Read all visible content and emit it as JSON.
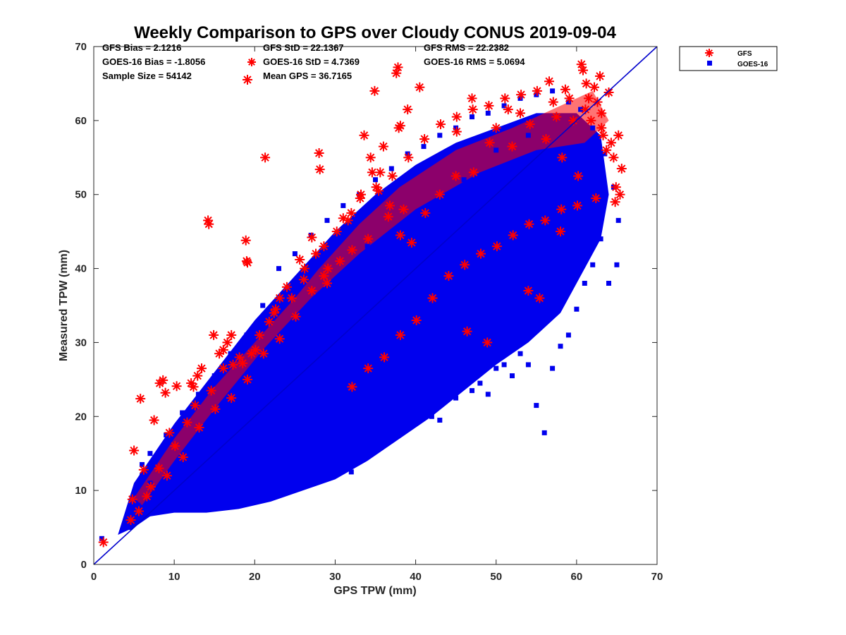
{
  "chart_data": {
    "type": "scatter",
    "title": "Weekly Comparison to GPS over Cloudy CONUS 2019-09-04",
    "xlabel": "GPS TPW (mm)",
    "ylabel": "Measured TPW (mm)",
    "xlim": [
      0,
      70
    ],
    "ylim": [
      0,
      70
    ],
    "xticks": [
      "0",
      "10",
      "20",
      "30",
      "40",
      "50",
      "60",
      "70"
    ],
    "yticks": [
      "0",
      "10",
      "20",
      "30",
      "40",
      "50",
      "60",
      "70"
    ],
    "grid": false,
    "legend_position": "outside-top-right",
    "reference_line": {
      "x": [
        0,
        70
      ],
      "y": [
        0,
        70
      ],
      "color": "#0000cc"
    },
    "stats": [
      {
        "text": "GFS Bias = 2.1216"
      },
      {
        "text": "GFS StD = 22.1367"
      },
      {
        "text": "GFS RMS = 22.2382"
      },
      {
        "text": "GOES-16 Bias = -1.8056"
      },
      {
        "text": "GOES-16 StD = 4.7369"
      },
      {
        "text": "GOES-16 RMS = 5.0694"
      },
      {
        "text": "Sample Size = 54142"
      },
      {
        "text": "Mean GPS = 36.7165"
      }
    ],
    "series": [
      {
        "name": "GFS",
        "marker": "asterisk",
        "color": "#ff0000",
        "points": [
          [
            1.2,
            3.0
          ],
          [
            4.6,
            6.0
          ],
          [
            4.8,
            8.8
          ],
          [
            5.0,
            15.4
          ],
          [
            5.8,
            22.4
          ],
          [
            6.2,
            12.8
          ],
          [
            7.5,
            19.5
          ],
          [
            8.2,
            24.5
          ],
          [
            8.6,
            24.9
          ],
          [
            8.9,
            23.2
          ],
          [
            9.4,
            17.8
          ],
          [
            10.3,
            24.1
          ],
          [
            11.6,
            19.2
          ],
          [
            12.1,
            24.5
          ],
          [
            12.4,
            24.0
          ],
          [
            12.9,
            25.5
          ],
          [
            13.4,
            26.5
          ],
          [
            14.2,
            46.5
          ],
          [
            14.3,
            46.0
          ],
          [
            14.9,
            31.0
          ],
          [
            15.6,
            28.5
          ],
          [
            16.1,
            29.0
          ],
          [
            16.6,
            30.0
          ],
          [
            17.1,
            31.0
          ],
          [
            17.3,
            27.0
          ],
          [
            18.1,
            28.0
          ],
          [
            18.5,
            27.2
          ],
          [
            18.9,
            43.8
          ],
          [
            19.0,
            41.0
          ],
          [
            19.1,
            40.8
          ],
          [
            19.6,
            28.5
          ],
          [
            20.1,
            29.0
          ],
          [
            21.3,
            55.0
          ],
          [
            21.8,
            32.8
          ],
          [
            22.4,
            34.0
          ],
          [
            23.1,
            36.0
          ],
          [
            24.0,
            37.5
          ],
          [
            24.6,
            36.0
          ],
          [
            25.6,
            41.2
          ],
          [
            26.2,
            40.0
          ],
          [
            27.1,
            44.2
          ],
          [
            27.6,
            42.0
          ],
          [
            28.0,
            55.6
          ],
          [
            28.1,
            53.4
          ],
          [
            28.6,
            39.0
          ],
          [
            29.1,
            40.0
          ],
          [
            30.2,
            45.0
          ],
          [
            31.0,
            46.8
          ],
          [
            32.0,
            47.5
          ],
          [
            33.2,
            50.0
          ],
          [
            33.6,
            58.0
          ],
          [
            34.4,
            55.0
          ],
          [
            34.6,
            53.0
          ],
          [
            34.9,
            64.0
          ],
          [
            35.4,
            50.5
          ],
          [
            35.6,
            53.0
          ],
          [
            36.0,
            56.5
          ],
          [
            36.8,
            48.5
          ],
          [
            37.6,
            66.4
          ],
          [
            37.8,
            67.2
          ],
          [
            37.9,
            59.0
          ],
          [
            38.1,
            59.3
          ],
          [
            38.5,
            48.0
          ],
          [
            39.0,
            61.5
          ],
          [
            40.5,
            64.5
          ],
          [
            45.1,
            58.5
          ],
          [
            46.4,
            31.5
          ],
          [
            47.0,
            63.0
          ],
          [
            48.9,
            30.0
          ],
          [
            50.0,
            59.0
          ],
          [
            51.5,
            61.5
          ],
          [
            53.0,
            61.0
          ],
          [
            54.0,
            37.0
          ],
          [
            55.4,
            36.0
          ],
          [
            56.6,
            65.3
          ],
          [
            57.5,
            60.5
          ],
          [
            58.0,
            45.0
          ],
          [
            58.6,
            64.2
          ],
          [
            59.6,
            60.0
          ],
          [
            60.6,
            67.6
          ],
          [
            60.8,
            66.8
          ],
          [
            61.2,
            65.0
          ],
          [
            61.5,
            63.0
          ],
          [
            61.8,
            60.0
          ],
          [
            62.2,
            64.5
          ],
          [
            62.6,
            62.5
          ],
          [
            62.9,
            66.0
          ],
          [
            63.1,
            59.0
          ],
          [
            63.3,
            58.0
          ],
          [
            63.7,
            56.0
          ],
          [
            64.0,
            63.8
          ],
          [
            64.3,
            57.0
          ],
          [
            64.6,
            55.0
          ],
          [
            64.9,
            51.0
          ],
          [
            65.2,
            58.0
          ],
          [
            65.4,
            50.0
          ],
          [
            65.6,
            53.5
          ],
          [
            64.8,
            49.0
          ],
          [
            62.4,
            49.5
          ],
          [
            60.2,
            52.5
          ],
          [
            58.2,
            55.0
          ],
          [
            56.2,
            57.5
          ],
          [
            54.2,
            59.5
          ],
          [
            52.0,
            56.5
          ],
          [
            49.2,
            57.0
          ],
          [
            47.2,
            53.0
          ],
          [
            45.0,
            52.5
          ],
          [
            43.0,
            50.0
          ],
          [
            41.2,
            47.5
          ],
          [
            39.5,
            43.5
          ],
          [
            38.1,
            44.5
          ],
          [
            36.6,
            47.0
          ],
          [
            34.1,
            44.0
          ],
          [
            32.1,
            42.5
          ],
          [
            30.6,
            41.0
          ],
          [
            29.0,
            38.0
          ],
          [
            27.1,
            37.0
          ],
          [
            25.1,
            33.5
          ],
          [
            23.1,
            30.5
          ],
          [
            21.1,
            28.5
          ],
          [
            19.1,
            25.0
          ],
          [
            17.1,
            22.5
          ],
          [
            15.1,
            21.0
          ],
          [
            13.1,
            18.5
          ],
          [
            11.1,
            14.5
          ],
          [
            9.1,
            12.0
          ],
          [
            7.1,
            10.5
          ],
          [
            6.6,
            9.2
          ],
          [
            5.6,
            7.2
          ],
          [
            8.1,
            13.0
          ],
          [
            10.1,
            16.0
          ],
          [
            12.6,
            21.5
          ],
          [
            14.6,
            23.5
          ],
          [
            16.1,
            26.5
          ],
          [
            20.6,
            31.0
          ],
          [
            22.6,
            34.5
          ],
          [
            26.1,
            38.5
          ],
          [
            28.6,
            43.0
          ],
          [
            31.6,
            46.5
          ],
          [
            33.1,
            49.5
          ],
          [
            35.1,
            51.0
          ],
          [
            37.1,
            52.5
          ],
          [
            39.1,
            55.0
          ],
          [
            41.1,
            57.5
          ],
          [
            43.1,
            59.5
          ],
          [
            45.1,
            60.5
          ],
          [
            47.1,
            61.5
          ],
          [
            49.1,
            62.0
          ],
          [
            51.1,
            63.0
          ],
          [
            53.1,
            63.5
          ],
          [
            55.1,
            64.0
          ],
          [
            57.1,
            62.5
          ],
          [
            59.1,
            63.0
          ],
          [
            61.1,
            61.5
          ],
          [
            63.1,
            61.0
          ],
          [
            42.1,
            36.0
          ],
          [
            44.1,
            39.0
          ],
          [
            46.1,
            40.5
          ],
          [
            48.1,
            42.0
          ],
          [
            50.1,
            43.0
          ],
          [
            52.1,
            44.5
          ],
          [
            54.1,
            46.0
          ],
          [
            56.1,
            46.5
          ],
          [
            58.1,
            48.0
          ],
          [
            60.1,
            48.5
          ],
          [
            40.1,
            33.0
          ],
          [
            38.1,
            31.0
          ],
          [
            36.1,
            28.0
          ],
          [
            34.1,
            26.5
          ],
          [
            32.1,
            24.0
          ]
        ]
      },
      {
        "name": "GOES-16",
        "marker": "square",
        "color": "#0000ee",
        "points": [
          [
            1.0,
            3.5
          ],
          [
            4.5,
            5.0
          ],
          [
            5.0,
            6.5
          ],
          [
            5.5,
            8.0
          ],
          [
            6.0,
            12.0
          ],
          [
            7.0,
            11.0
          ],
          [
            8.0,
            10.0
          ],
          [
            9.0,
            9.0
          ],
          [
            10.0,
            8.5
          ],
          [
            11.0,
            8.0
          ],
          [
            12.0,
            8.0
          ],
          [
            13.0,
            8.5
          ],
          [
            14.0,
            8.0
          ],
          [
            15.0,
            9.0
          ],
          [
            16.0,
            9.5
          ],
          [
            17.0,
            10.0
          ],
          [
            18.0,
            10.0
          ],
          [
            19.0,
            11.0
          ],
          [
            20.0,
            12.0
          ],
          [
            21.0,
            12.5
          ],
          [
            22.0,
            13.5
          ],
          [
            23.0,
            14.5
          ],
          [
            24.0,
            15.0
          ],
          [
            25.0,
            16.0
          ],
          [
            26.0,
            17.5
          ],
          [
            27.0,
            17.0
          ],
          [
            28.0,
            18.0
          ],
          [
            29.0,
            19.0
          ],
          [
            30.0,
            19.5
          ],
          [
            31.0,
            14.0
          ],
          [
            32.0,
            12.5
          ],
          [
            33.0,
            16.0
          ],
          [
            34.0,
            17.5
          ],
          [
            35.0,
            18.0
          ],
          [
            36.0,
            19.0
          ],
          [
            37.0,
            20.0
          ],
          [
            38.0,
            21.0
          ],
          [
            39.0,
            20.5
          ],
          [
            40.0,
            22.0
          ],
          [
            41.0,
            22.5
          ],
          [
            42.0,
            20.0
          ],
          [
            43.0,
            19.5
          ],
          [
            44.0,
            23.0
          ],
          [
            45.0,
            22.5
          ],
          [
            46.0,
            25.0
          ],
          [
            47.0,
            23.5
          ],
          [
            48.0,
            24.5
          ],
          [
            49.0,
            23.0
          ],
          [
            50.0,
            26.5
          ],
          [
            51.0,
            27.0
          ],
          [
            52.0,
            25.5
          ],
          [
            53.0,
            28.5
          ],
          [
            54.0,
            27.0
          ],
          [
            55.0,
            21.5
          ],
          [
            56.0,
            17.8
          ],
          [
            57.0,
            26.5
          ],
          [
            58.0,
            29.5
          ],
          [
            59.0,
            31.0
          ],
          [
            60.0,
            34.5
          ],
          [
            61.0,
            38.0
          ],
          [
            62.0,
            40.5
          ],
          [
            63.0,
            44.0
          ],
          [
            64.0,
            38.0
          ],
          [
            65.0,
            40.5
          ],
          [
            65.2,
            46.5
          ],
          [
            64.6,
            51.0
          ],
          [
            63.5,
            55.5
          ],
          [
            62.0,
            59.0
          ],
          [
            60.5,
            61.5
          ],
          [
            59.0,
            62.5
          ],
          [
            57.0,
            64.0
          ],
          [
            55.0,
            63.5
          ],
          [
            53.0,
            63.0
          ],
          [
            51.0,
            62.0
          ],
          [
            49.0,
            61.0
          ],
          [
            47.0,
            60.5
          ],
          [
            45.0,
            59.0
          ],
          [
            43.0,
            58.0
          ],
          [
            41.0,
            56.5
          ],
          [
            39.0,
            55.5
          ],
          [
            37.0,
            53.5
          ],
          [
            35.0,
            52.0
          ],
          [
            33.0,
            50.0
          ],
          [
            31.0,
            48.5
          ],
          [
            29.0,
            46.5
          ],
          [
            27.0,
            44.5
          ],
          [
            25.0,
            42.0
          ],
          [
            23.0,
            40.0
          ],
          [
            21.0,
            35.0
          ],
          [
            19.0,
            31.0
          ],
          [
            17.0,
            28.5
          ],
          [
            15.0,
            25.5
          ],
          [
            13.0,
            23.0
          ],
          [
            11.0,
            20.5
          ],
          [
            9.0,
            17.5
          ],
          [
            7.0,
            15.0
          ],
          [
            6.0,
            13.5
          ],
          [
            30.0,
            33.0
          ],
          [
            35.0,
            38.0
          ],
          [
            40.0,
            42.0
          ],
          [
            45.0,
            46.0
          ],
          [
            50.0,
            50.0
          ],
          [
            55.0,
            53.0
          ],
          [
            60.0,
            55.0
          ],
          [
            25.0,
            28.0
          ],
          [
            20.0,
            22.0
          ],
          [
            15.0,
            16.0
          ],
          [
            10.0,
            11.0
          ],
          [
            32.0,
            28.0
          ],
          [
            38.0,
            33.0
          ],
          [
            44.0,
            38.0
          ],
          [
            48.0,
            42.0
          ],
          [
            52.0,
            46.0
          ],
          [
            56.0,
            48.0
          ],
          [
            28.0,
            36.0
          ],
          [
            34.0,
            43.0
          ],
          [
            42.0,
            48.0
          ],
          [
            46.0,
            52.0
          ],
          [
            50.0,
            56.0
          ],
          [
            54.0,
            58.0
          ]
        ]
      }
    ]
  }
}
